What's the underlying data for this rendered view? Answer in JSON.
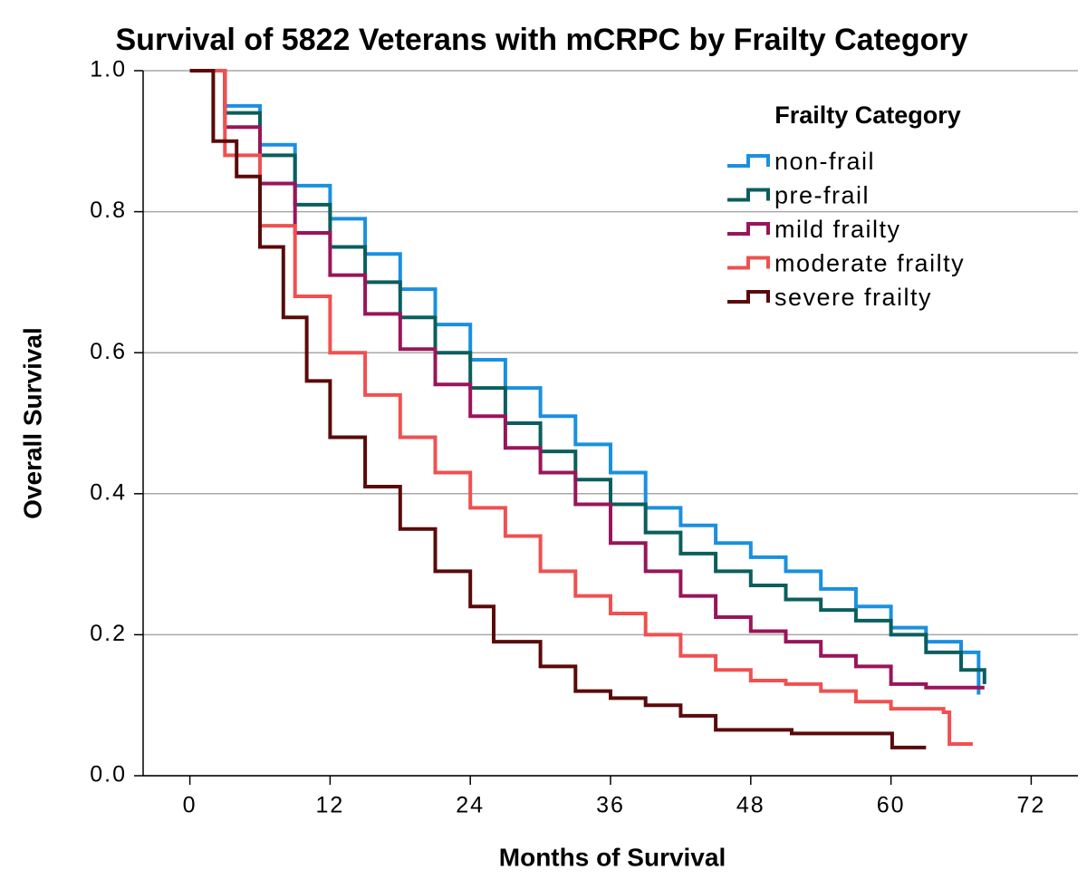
{
  "chart_data": {
    "type": "step",
    "title": "Survival of 5822 Veterans with mCRPC by Frailty Category",
    "x_label": "Months of Survival",
    "y_label": "Overall Survival",
    "legend_title": "Frailty Category",
    "legend_position": "upper right",
    "grid": true,
    "xlim": [
      -4,
      76
    ],
    "xticks": [
      0,
      12,
      24,
      36,
      48,
      60,
      72
    ],
    "ylim": [
      0,
      1
    ],
    "yticks": [
      {
        "value": 0,
        "label": "0.0"
      },
      0.2,
      0.4,
      0.6,
      0.8,
      {
        "value": 1,
        "label": "1.0"
      }
    ],
    "series": [
      {
        "name": "non-frail",
        "color": "#1a90e0",
        "x": [
          0,
          3,
          6,
          9,
          12,
          15,
          18,
          21,
          24,
          27,
          30,
          33,
          36,
          39,
          42,
          45,
          48,
          51,
          54,
          57,
          60,
          63,
          66,
          67.5
        ],
        "values": [
          1.0,
          0.95,
          0.895,
          0.837,
          0.79,
          0.74,
          0.69,
          0.64,
          0.59,
          0.55,
          0.51,
          0.47,
          0.43,
          0.38,
          0.355,
          0.33,
          0.31,
          0.29,
          0.265,
          0.24,
          0.21,
          0.19,
          0.175,
          0.115
        ]
      },
      {
        "name": "pre-frail",
        "color": "#0b5e5e",
        "x": [
          0,
          3,
          6,
          9,
          12,
          15,
          18,
          21,
          24,
          27,
          30,
          33,
          36,
          39,
          42,
          45,
          48,
          51,
          54,
          57,
          60,
          63,
          66,
          68
        ],
        "values": [
          1.0,
          0.94,
          0.88,
          0.81,
          0.75,
          0.7,
          0.65,
          0.6,
          0.55,
          0.5,
          0.46,
          0.42,
          0.385,
          0.345,
          0.315,
          0.29,
          0.27,
          0.25,
          0.235,
          0.22,
          0.2,
          0.175,
          0.15,
          0.13
        ]
      },
      {
        "name": "mild frailty",
        "color": "#99155a",
        "x": [
          0,
          3,
          6,
          9,
          12,
          15,
          18,
          21,
          24,
          27,
          30,
          33,
          36,
          39,
          42,
          45,
          48,
          51,
          54,
          57,
          60,
          63,
          68
        ],
        "values": [
          1.0,
          0.92,
          0.84,
          0.77,
          0.71,
          0.655,
          0.605,
          0.555,
          0.51,
          0.465,
          0.43,
          0.385,
          0.33,
          0.29,
          0.255,
          0.225,
          0.205,
          0.19,
          0.17,
          0.155,
          0.13,
          0.125,
          0.125
        ]
      },
      {
        "name": "moderate frailty",
        "color": "#f05050",
        "x": [
          0,
          3,
          6,
          9,
          12,
          15,
          18,
          21,
          24,
          27,
          30,
          33,
          36,
          39,
          42,
          45,
          48,
          51,
          54,
          57,
          60,
          64.5,
          65,
          67
        ],
        "values": [
          1.0,
          0.88,
          0.78,
          0.68,
          0.6,
          0.54,
          0.48,
          0.43,
          0.38,
          0.34,
          0.29,
          0.255,
          0.23,
          0.2,
          0.17,
          0.15,
          0.135,
          0.13,
          0.12,
          0.105,
          0.095,
          0.09,
          0.045,
          0.045
        ]
      },
      {
        "name": "severe frailty",
        "color": "#5a0a0a",
        "x": [
          0,
          2,
          4,
          6,
          8,
          10,
          12,
          15,
          18,
          21,
          24,
          26,
          30,
          33,
          36,
          39,
          42,
          45,
          51,
          51.5,
          60,
          60.1,
          63
        ],
        "values": [
          1.0,
          0.9,
          0.85,
          0.75,
          0.65,
          0.56,
          0.48,
          0.41,
          0.35,
          0.29,
          0.24,
          0.19,
          0.155,
          0.12,
          0.11,
          0.1,
          0.085,
          0.065,
          0.065,
          0.06,
          0.06,
          0.04,
          0.04
        ]
      }
    ]
  }
}
